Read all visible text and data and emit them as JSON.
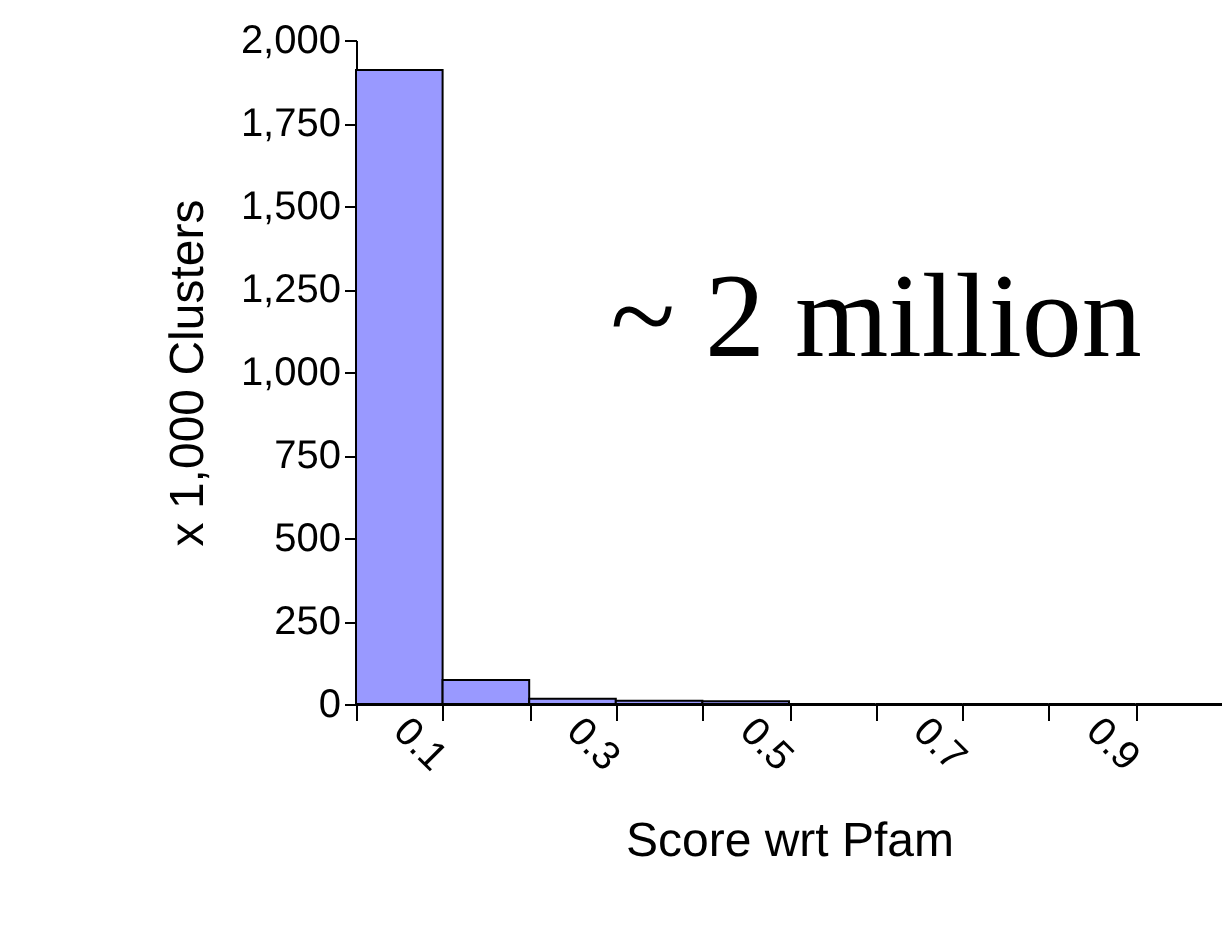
{
  "chart_data": {
    "type": "bar",
    "xlabel": "Score wrt Pfam",
    "ylabel": "x 1,000 Clusters",
    "categories": [
      "0.1",
      null,
      "0.3",
      null,
      "0.5",
      null,
      "0.7",
      null,
      "0.9",
      null
    ],
    "values": [
      1910,
      72,
      16,
      10,
      8,
      0,
      0,
      0,
      0,
      0
    ],
    "color": "#9999ff",
    "ylim": [
      0,
      2000
    ],
    "yticks": [
      0,
      250,
      500,
      750,
      {
        "value": 1000,
        "label": "1,000"
      },
      {
        "value": 1250,
        "label": "1,250"
      },
      {
        "value": 1500,
        "label": "1,500"
      },
      {
        "value": 1750,
        "label": "1,750"
      },
      {
        "value": 2000,
        "label": "2,000"
      }
    ],
    "grid": false,
    "annotations": [
      "~ 2 million"
    ]
  }
}
